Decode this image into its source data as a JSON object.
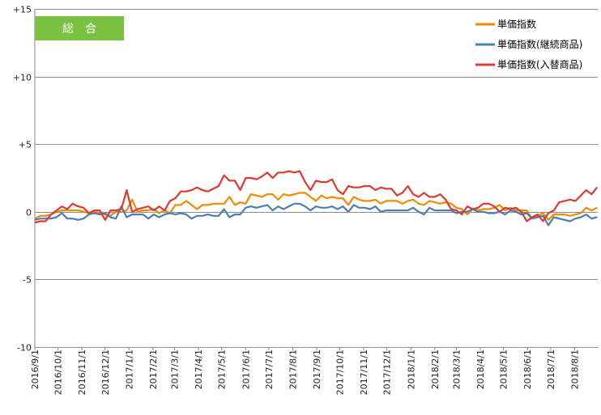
{
  "chart_data": {
    "type": "line",
    "badge": {
      "label": "総　合",
      "color": "#7cc242",
      "text_color": "#ffffff"
    },
    "y_axis": {
      "ylim": [
        -10,
        15
      ],
      "ticks": [
        15,
        10,
        5,
        0,
        -5,
        -10
      ],
      "tick_labels": [
        "+15",
        "+10",
        "+5",
        "0",
        "-5",
        "-10"
      ]
    },
    "x_axis": {
      "ticks": [
        "2016/9/1",
        "2016/10/1",
        "2016/11/1",
        "2016/12/1",
        "2017/1/1",
        "2017/2/1",
        "2017/3/1",
        "2017/4/1",
        "2017/5/1",
        "2017/6/1",
        "2017/7/1",
        "2017/8/1",
        "2017/9/1",
        "2017/10/1",
        "2017/11/1",
        "2017/12/1",
        "2018/1/1",
        "2018/2/1",
        "2018/3/1",
        "2018/4/1",
        "2018/5/1",
        "2018/6/1",
        "2018/7/1",
        "2018/8/1"
      ],
      "tick_dates": [
        "2016-09-01",
        "2016-10-01",
        "2016-11-01",
        "2016-12-01",
        "2017-01-01",
        "2017-02-01",
        "2017-03-01",
        "2017-04-01",
        "2017-05-01",
        "2017-06-01",
        "2017-07-01",
        "2017-08-01",
        "2017-09-01",
        "2017-10-01",
        "2017-11-01",
        "2017-12-01",
        "2018-01-01",
        "2018-02-01",
        "2018-03-01",
        "2018-04-01",
        "2018-05-01",
        "2018-06-01",
        "2018-07-01",
        "2018-08-01"
      ],
      "range": [
        "2016-09-01",
        "2018-08-31"
      ]
    },
    "grid": true,
    "legend_position": "top-right",
    "series": [
      {
        "name": "単価指数",
        "color": "#f08c00",
        "x": [
          "2016-09-01",
          "2016-09-08",
          "2016-09-15",
          "2016-09-22",
          "2016-09-29",
          "2016-10-06",
          "2016-10-13",
          "2016-10-20",
          "2016-10-27",
          "2016-11-03",
          "2016-11-10",
          "2016-11-17",
          "2016-11-24",
          "2016-12-01",
          "2016-12-08",
          "2016-12-15",
          "2016-12-22",
          "2016-12-29",
          "2017-01-05",
          "2017-01-12",
          "2017-01-19",
          "2017-01-26",
          "2017-02-02",
          "2017-02-09",
          "2017-02-16",
          "2017-02-23",
          "2017-03-02",
          "2017-03-09",
          "2017-03-16",
          "2017-03-23",
          "2017-03-30",
          "2017-04-06",
          "2017-04-13",
          "2017-04-20",
          "2017-04-27",
          "2017-05-04",
          "2017-05-11",
          "2017-05-18",
          "2017-05-25",
          "2017-06-01",
          "2017-06-08",
          "2017-06-15",
          "2017-06-22",
          "2017-06-29",
          "2017-07-06",
          "2017-07-13",
          "2017-07-20",
          "2017-07-27",
          "2017-08-03",
          "2017-08-10",
          "2017-08-17",
          "2017-08-24",
          "2017-08-31",
          "2017-09-07",
          "2017-09-14",
          "2017-09-21",
          "2017-09-28",
          "2017-10-05",
          "2017-10-12",
          "2017-10-19",
          "2017-10-26",
          "2017-11-02",
          "2017-11-09",
          "2017-11-16",
          "2017-11-23",
          "2017-11-30",
          "2017-12-07",
          "2017-12-14",
          "2017-12-21",
          "2017-12-28",
          "2018-01-04",
          "2018-01-11",
          "2018-01-18",
          "2018-01-25",
          "2018-02-01",
          "2018-02-08",
          "2018-02-15",
          "2018-02-22",
          "2018-03-01",
          "2018-03-08",
          "2018-03-15",
          "2018-03-22",
          "2018-03-29",
          "2018-04-05",
          "2018-04-12",
          "2018-04-19",
          "2018-04-26",
          "2018-05-03",
          "2018-05-10",
          "2018-05-17",
          "2018-05-24",
          "2018-05-31",
          "2018-06-07",
          "2018-06-14",
          "2018-06-21",
          "2018-06-28",
          "2018-07-05",
          "2018-07-12",
          "2018-07-19",
          "2018-07-26",
          "2018-08-02",
          "2018-08-09",
          "2018-08-16",
          "2018-08-23",
          "2018-08-30"
        ],
        "y": [
          -0.5,
          -0.3,
          -0.3,
          -0.2,
          0.0,
          0.1,
          0.1,
          0.1,
          0.1,
          0.0,
          -0.1,
          0.0,
          -0.1,
          -0.2,
          -0.3,
          0.0,
          0.0,
          0.1,
          0.9,
          0.0,
          0.1,
          0.1,
          0.2,
          -0.1,
          0.1,
          -0.1,
          0.5,
          0.5,
          0.8,
          0.5,
          0.2,
          0.5,
          0.5,
          0.6,
          0.6,
          0.6,
          1.1,
          0.5,
          0.7,
          0.6,
          1.3,
          1.2,
          1.1,
          1.3,
          1.3,
          0.9,
          1.3,
          1.2,
          1.3,
          1.4,
          1.4,
          1.1,
          0.8,
          1.2,
          1.0,
          1.1,
          1.0,
          1.0,
          0.5,
          1.1,
          0.9,
          0.8,
          0.8,
          0.9,
          0.6,
          0.8,
          0.8,
          0.8,
          0.6,
          0.8,
          0.9,
          0.6,
          0.5,
          0.8,
          0.7,
          0.6,
          0.7,
          0.6,
          0.3,
          0.2,
          -0.2,
          0.2,
          0.1,
          0.2,
          0.2,
          0.3,
          0.5,
          0.1,
          0.3,
          0.1,
          0.1,
          0.1,
          -0.5,
          -0.3,
          -0.1,
          -0.6,
          -0.2,
          -0.2,
          -0.2,
          -0.3,
          -0.2,
          -0.1,
          0.3,
          0.1,
          0.3
        ]
      },
      {
        "name": "単価指数(継続商品)",
        "color": "#4a7ebb",
        "x": [
          "2016-09-01",
          "2016-09-08",
          "2016-09-15",
          "2016-09-22",
          "2016-09-29",
          "2016-10-06",
          "2016-10-13",
          "2016-10-20",
          "2016-10-27",
          "2016-11-03",
          "2016-11-10",
          "2016-11-17",
          "2016-11-24",
          "2016-12-01",
          "2016-12-08",
          "2016-12-15",
          "2016-12-22",
          "2016-12-29",
          "2017-01-05",
          "2017-01-12",
          "2017-01-19",
          "2017-01-26",
          "2017-02-02",
          "2017-02-09",
          "2017-02-16",
          "2017-02-23",
          "2017-03-02",
          "2017-03-09",
          "2017-03-16",
          "2017-03-23",
          "2017-03-30",
          "2017-04-06",
          "2017-04-13",
          "2017-04-20",
          "2017-04-27",
          "2017-05-04",
          "2017-05-11",
          "2017-05-18",
          "2017-05-25",
          "2017-06-01",
          "2017-06-08",
          "2017-06-15",
          "2017-06-22",
          "2017-06-29",
          "2017-07-06",
          "2017-07-13",
          "2017-07-20",
          "2017-07-27",
          "2017-08-03",
          "2017-08-10",
          "2017-08-17",
          "2017-08-24",
          "2017-08-31",
          "2017-09-07",
          "2017-09-14",
          "2017-09-21",
          "2017-09-28",
          "2017-10-05",
          "2017-10-12",
          "2017-10-19",
          "2017-10-26",
          "2017-11-02",
          "2017-11-09",
          "2017-11-16",
          "2017-11-23",
          "2017-11-30",
          "2017-12-07",
          "2017-12-14",
          "2017-12-21",
          "2017-12-28",
          "2018-01-04",
          "2018-01-11",
          "2018-01-18",
          "2018-01-25",
          "2018-02-01",
          "2018-02-08",
          "2018-02-15",
          "2018-02-22",
          "2018-03-01",
          "2018-03-08",
          "2018-03-15",
          "2018-03-22",
          "2018-03-29",
          "2018-04-05",
          "2018-04-12",
          "2018-04-19",
          "2018-04-26",
          "2018-05-03",
          "2018-05-10",
          "2018-05-17",
          "2018-05-24",
          "2018-05-31",
          "2018-06-07",
          "2018-06-14",
          "2018-06-21",
          "2018-06-28",
          "2018-07-05",
          "2018-07-12",
          "2018-07-19",
          "2018-07-26",
          "2018-08-02",
          "2018-08-09",
          "2018-08-16",
          "2018-08-23",
          "2018-08-30"
        ],
        "y": [
          -0.6,
          -0.5,
          -0.5,
          -0.5,
          -0.4,
          -0.1,
          -0.5,
          -0.5,
          -0.6,
          -0.5,
          -0.2,
          -0.1,
          -0.2,
          -0.1,
          -0.4,
          -0.5,
          0.4,
          -0.4,
          -0.2,
          -0.2,
          -0.2,
          -0.5,
          -0.2,
          -0.4,
          -0.2,
          -0.1,
          -0.2,
          -0.1,
          -0.2,
          -0.5,
          -0.3,
          -0.3,
          -0.2,
          -0.3,
          -0.3,
          0.2,
          -0.4,
          -0.2,
          -0.2,
          0.3,
          0.4,
          0.3,
          0.4,
          0.5,
          0.1,
          0.4,
          0.2,
          0.4,
          0.6,
          0.6,
          0.4,
          0.1,
          0.4,
          0.3,
          0.3,
          0.4,
          0.2,
          0.4,
          0.0,
          0.5,
          0.3,
          0.3,
          0.2,
          0.4,
          0.0,
          0.1,
          0.1,
          0.1,
          0.1,
          0.1,
          0.3,
          0.0,
          -0.2,
          0.3,
          0.1,
          0.1,
          0.1,
          0.1,
          -0.1,
          0.0,
          0.0,
          0.2,
          0.0,
          0.0,
          -0.1,
          -0.1,
          0.0,
          -0.2,
          0.1,
          0.0,
          -0.2,
          -0.1,
          -0.5,
          -0.4,
          -0.3,
          -1.0,
          -0.4,
          -0.5,
          -0.6,
          -0.7,
          -0.5,
          -0.4,
          -0.2,
          -0.5,
          -0.4
        ]
      },
      {
        "name": "単価指数(入替商品)",
        "color": "#e03a30",
        "x": [
          "2016-09-01",
          "2016-09-08",
          "2016-09-15",
          "2016-09-22",
          "2016-09-29",
          "2016-10-06",
          "2016-10-13",
          "2016-10-20",
          "2016-10-27",
          "2016-11-03",
          "2016-11-10",
          "2016-11-17",
          "2016-11-24",
          "2016-12-01",
          "2016-12-08",
          "2016-12-15",
          "2016-12-22",
          "2016-12-29",
          "2017-01-05",
          "2017-01-12",
          "2017-01-19",
          "2017-01-26",
          "2017-02-02",
          "2017-02-09",
          "2017-02-16",
          "2017-02-23",
          "2017-03-02",
          "2017-03-09",
          "2017-03-16",
          "2017-03-23",
          "2017-03-30",
          "2017-04-06",
          "2017-04-13",
          "2017-04-20",
          "2017-04-27",
          "2017-05-04",
          "2017-05-11",
          "2017-05-18",
          "2017-05-25",
          "2017-06-01",
          "2017-06-08",
          "2017-06-15",
          "2017-06-22",
          "2017-06-29",
          "2017-07-06",
          "2017-07-13",
          "2017-07-20",
          "2017-07-27",
          "2017-08-03",
          "2017-08-10",
          "2017-08-17",
          "2017-08-24",
          "2017-08-31",
          "2017-09-07",
          "2017-09-14",
          "2017-09-21",
          "2017-09-28",
          "2017-10-05",
          "2017-10-12",
          "2017-10-19",
          "2017-10-26",
          "2017-11-02",
          "2017-11-09",
          "2017-11-16",
          "2017-11-23",
          "2017-11-30",
          "2017-12-07",
          "2017-12-14",
          "2017-12-21",
          "2017-12-28",
          "2018-01-04",
          "2018-01-11",
          "2018-01-18",
          "2018-01-25",
          "2018-02-01",
          "2018-02-08",
          "2018-02-15",
          "2018-02-22",
          "2018-03-01",
          "2018-03-08",
          "2018-03-15",
          "2018-03-22",
          "2018-03-29",
          "2018-04-05",
          "2018-04-12",
          "2018-04-19",
          "2018-04-26",
          "2018-05-03",
          "2018-05-10",
          "2018-05-17",
          "2018-05-24",
          "2018-05-31",
          "2018-06-07",
          "2018-06-14",
          "2018-06-21",
          "2018-06-28",
          "2018-07-05",
          "2018-07-12",
          "2018-07-19",
          "2018-07-26",
          "2018-08-02",
          "2018-08-09",
          "2018-08-16",
          "2018-08-23",
          "2018-08-30"
        ],
        "y": [
          -0.8,
          -0.7,
          -0.7,
          -0.2,
          0.1,
          0.4,
          0.2,
          0.6,
          0.4,
          0.3,
          -0.1,
          0.1,
          0.1,
          -0.6,
          0.1,
          0.1,
          0.2,
          1.6,
          0.0,
          0.2,
          0.3,
          0.4,
          0.1,
          0.4,
          0.1,
          0.8,
          1.0,
          1.5,
          1.5,
          1.6,
          1.8,
          1.6,
          1.5,
          1.7,
          1.9,
          2.7,
          2.3,
          2.3,
          1.6,
          2.5,
          2.5,
          2.4,
          2.6,
          2.9,
          2.5,
          2.9,
          2.9,
          3.0,
          2.9,
          3.0,
          2.2,
          1.6,
          2.3,
          2.2,
          2.2,
          2.4,
          1.6,
          1.3,
          1.9,
          1.8,
          1.8,
          1.9,
          1.9,
          1.6,
          1.8,
          1.7,
          1.7,
          1.2,
          1.4,
          1.9,
          1.3,
          1.1,
          1.4,
          1.1,
          1.1,
          1.3,
          0.9,
          0.2,
          0.1,
          -0.2,
          0.4,
          0.2,
          0.3,
          0.6,
          0.6,
          0.4,
          0.0,
          0.3,
          0.2,
          0.3,
          0.0,
          -0.7,
          -0.4,
          -0.2,
          -0.7,
          -0.1,
          0.1,
          0.7,
          0.8,
          0.9,
          0.8,
          1.2,
          1.6,
          1.3,
          1.8
        ]
      }
    ]
  }
}
